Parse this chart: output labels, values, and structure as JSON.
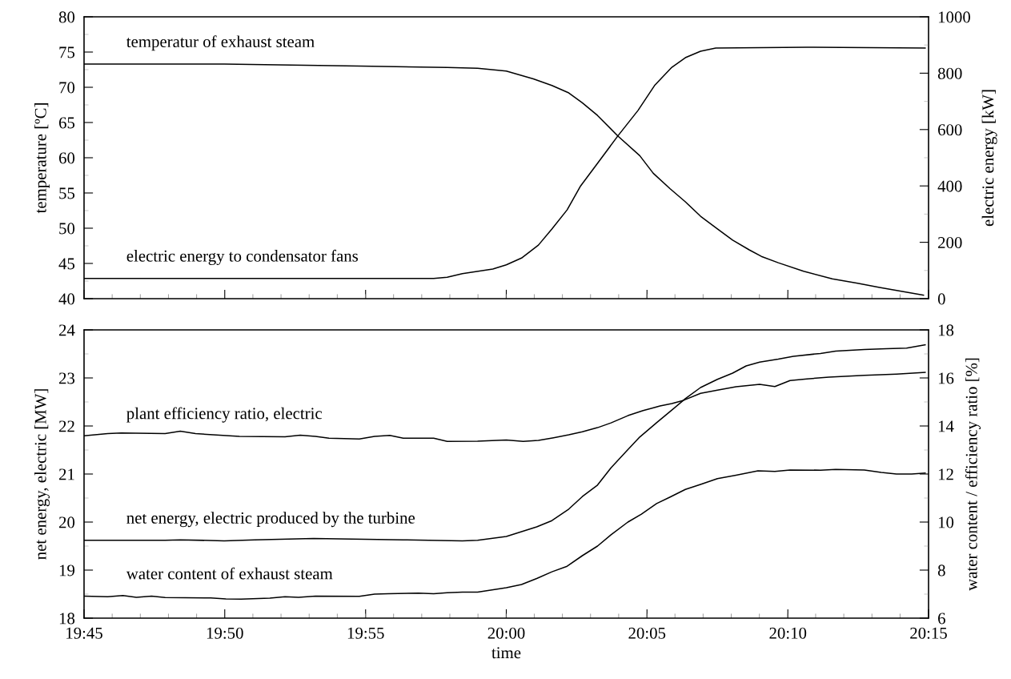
{
  "chart_data": [
    {
      "type": "line",
      "ylabel": "temperature [ºC]",
      "y2label": "electric energy [kW]",
      "tick_labels": "y",
      "grid": false,
      "legend": false,
      "marker": "none",
      "line_style": "solid",
      "xlim": [
        19.75,
        20.25
      ],
      "xticks": [
        {
          "value": 19.75,
          "label": null
        },
        {
          "value": 19.8333,
          "label": null
        },
        {
          "value": 19.9167,
          "label": null
        },
        {
          "value": 20.0,
          "label": null
        },
        {
          "value": 20.0833,
          "label": null
        },
        {
          "value": 20.1667,
          "label": null
        },
        {
          "value": 20.25,
          "label": null
        }
      ],
      "ylim": [
        40,
        80
      ],
      "yticks": [
        40,
        45,
        50,
        55,
        60,
        65,
        70,
        75,
        80
      ],
      "y2lim": [
        0,
        1000
      ],
      "y2ticks": [
        0,
        200,
        400,
        600,
        800,
        1000
      ],
      "series": [
        {
          "name": "temperatur of exhaust steam",
          "color": "#000000",
          "x": [
            19.75,
            19.833,
            19.913,
            19.965,
            19.983,
            20.0,
            20.016,
            20.027,
            20.037,
            20.045,
            20.054,
            20.066,
            20.079,
            20.087,
            20.097,
            20.106,
            20.115,
            20.125,
            20.134,
            20.144,
            20.151,
            20.161,
            20.176,
            20.193,
            20.208,
            20.221,
            20.247
          ],
          "values": [
            73.3,
            73.3,
            73.0,
            72.8,
            72.7,
            72.3,
            71.2,
            70.25,
            69.2,
            67.8,
            66.0,
            63.1,
            60.3,
            57.8,
            55.6,
            53.75,
            51.7,
            49.9,
            48.3,
            46.9,
            46.0,
            45.1,
            43.9,
            42.8,
            42.2,
            41.6,
            40.5
          ]
        },
        {
          "name": "electric energy to condensator fans",
          "color": "#000000",
          "axis": "y2",
          "x": [
            19.75,
            19.957,
            19.965,
            19.974,
            19.992,
            20.0,
            20.009,
            20.019,
            20.027,
            20.036,
            20.044,
            20.054,
            20.066,
            20.078,
            20.088,
            20.098,
            20.106,
            20.115,
            20.124,
            20.178,
            20.248
          ],
          "values": [
            72,
            72,
            76,
            89,
            105,
            120,
            144,
            190,
            247,
            315,
            400,
            480,
            577,
            668,
            758,
            821,
            855,
            878,
            889,
            892,
            889
          ]
        }
      ]
    },
    {
      "type": "line",
      "xlabel": "time",
      "ylabel": "net energy, electric [MW]",
      "y2label": "water content / efficiency ratio [%]",
      "grid": false,
      "legend": false,
      "marker": "none",
      "line_style": "solid",
      "xlim": [
        19.75,
        20.25
      ],
      "xticks": [
        {
          "value": 19.75,
          "label": "19:45"
        },
        {
          "value": 19.8333,
          "label": "19:50"
        },
        {
          "value": 19.9167,
          "label": "19:55"
        },
        {
          "value": 20.0,
          "label": "20:00"
        },
        {
          "value": 20.0833,
          "label": "20:05"
        },
        {
          "value": 20.1667,
          "label": "20:10"
        },
        {
          "value": 20.25,
          "label": "20:15"
        }
      ],
      "ylim": [
        18,
        24
      ],
      "yticks": [
        18,
        19,
        20,
        21,
        22,
        23,
        24
      ],
      "y2lim": [
        6,
        18
      ],
      "y2ticks": [
        6,
        8,
        10,
        12,
        14,
        16,
        18
      ],
      "series": [
        {
          "name": "plant efficiency ratio, electric",
          "color": "#000000",
          "axis": "y2",
          "x": [
            19.75,
            19.764,
            19.772,
            19.798,
            19.807,
            19.816,
            19.842,
            19.869,
            19.878,
            19.887,
            19.895,
            19.913,
            19.922,
            19.931,
            19.939,
            19.957,
            19.965,
            19.983,
            20.0,
            20.01,
            20.019,
            20.028,
            20.037,
            20.045,
            20.054,
            20.062,
            20.072,
            20.081,
            20.091,
            20.098,
            20.105,
            20.115,
            20.125,
            20.136,
            20.15,
            20.159,
            20.168,
            20.178,
            20.191,
            20.212,
            20.231,
            20.248
          ],
          "values": [
            13.59,
            13.68,
            13.71,
            13.68,
            13.78,
            13.68,
            13.57,
            13.55,
            13.62,
            13.57,
            13.49,
            13.46,
            13.57,
            13.61,
            13.49,
            13.49,
            13.36,
            13.37,
            13.42,
            13.36,
            13.4,
            13.51,
            13.63,
            13.76,
            13.93,
            14.13,
            14.43,
            14.64,
            14.83,
            14.93,
            15.07,
            15.36,
            15.49,
            15.63,
            15.73,
            15.64,
            15.89,
            15.96,
            16.03,
            16.11,
            16.16,
            16.23
          ]
        },
        {
          "name": "net energy, electric produced by the turbine",
          "color": "#000000",
          "x": [
            19.75,
            19.798,
            19.807,
            19.833,
            19.851,
            19.886,
            19.939,
            19.974,
            19.983,
            20.0,
            20.018,
            20.027,
            20.037,
            20.045,
            20.054,
            20.062,
            20.071,
            20.079,
            20.089,
            20.098,
            20.106,
            20.115,
            20.125,
            20.134,
            20.142,
            20.15,
            20.161,
            20.17,
            20.186,
            20.195,
            20.212,
            20.225,
            20.237,
            20.248
          ],
          "values": [
            19.62,
            19.62,
            19.63,
            19.61,
            19.63,
            19.66,
            19.63,
            19.61,
            19.62,
            19.7,
            19.9,
            20.03,
            20.27,
            20.53,
            20.77,
            21.13,
            21.47,
            21.77,
            22.07,
            22.33,
            22.57,
            22.8,
            22.97,
            23.1,
            23.25,
            23.33,
            23.39,
            23.45,
            23.51,
            23.56,
            23.59,
            23.61,
            23.62,
            23.69
          ]
        },
        {
          "name": "water content of exhaust steam",
          "color": "#000000",
          "axis": "y2",
          "x": [
            19.75,
            19.764,
            19.773,
            19.781,
            19.79,
            19.798,
            19.825,
            19.834,
            19.843,
            19.86,
            19.869,
            19.877,
            19.887,
            19.913,
            19.922,
            19.93,
            19.948,
            19.957,
            19.965,
            19.974,
            19.983,
            20.0,
            20.009,
            20.018,
            20.027,
            20.036,
            20.045,
            20.054,
            20.062,
            20.072,
            20.08,
            20.089,
            20.097,
            20.106,
            20.115,
            20.125,
            20.136,
            20.149,
            20.159,
            20.168,
            20.186,
            20.195,
            20.212,
            20.222,
            20.231,
            20.24,
            20.248
          ],
          "values": [
            6.92,
            6.89,
            6.94,
            6.87,
            6.92,
            6.86,
            6.84,
            6.8,
            6.79,
            6.83,
            6.89,
            6.87,
            6.92,
            6.91,
            7.0,
            7.02,
            7.04,
            7.02,
            7.06,
            7.08,
            7.08,
            7.27,
            7.4,
            7.65,
            7.93,
            8.16,
            8.6,
            9.0,
            9.47,
            10.0,
            10.33,
            10.77,
            11.04,
            11.36,
            11.57,
            11.81,
            11.95,
            12.13,
            12.11,
            12.17,
            12.16,
            12.19,
            12.17,
            12.07,
            12.0,
            12.0,
            12.04
          ]
        }
      ]
    }
  ]
}
